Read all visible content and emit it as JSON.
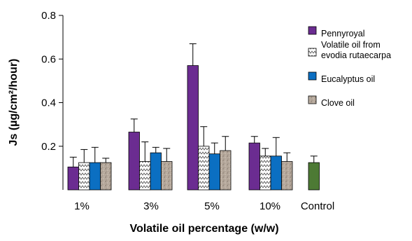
{
  "chart_data": {
    "type": "bar",
    "title": "",
    "xlabel": "Volatile oil percentage (w/w)",
    "ylabel": "Js (µg/cm²/hour)",
    "ylim": [
      0,
      0.8
    ],
    "yticks": [
      "0.2",
      "0.4",
      "0.6",
      "0.8"
    ],
    "categories": [
      "1%",
      "3%",
      "5%",
      "10%",
      "Control"
    ],
    "series": [
      {
        "name": "Pennyroyal",
        "color": "#6b2c91",
        "pattern": "solid",
        "values": [
          0.105,
          0.265,
          0.57,
          0.215,
          null
        ],
        "errors": [
          0.045,
          0.06,
          0.1,
          0.03,
          null
        ]
      },
      {
        "name": "Volatile oil from evodia rutaecarpa",
        "color": "#ffffff",
        "pattern": "zigzag",
        "values": [
          0.125,
          0.13,
          0.2,
          0.155,
          null
        ],
        "errors": [
          0.06,
          0.09,
          0.09,
          0.035,
          null
        ]
      },
      {
        "name": "Eucalyptus oil",
        "color": "#0b6fc2",
        "pattern": "solid",
        "values": [
          0.125,
          0.17,
          0.165,
          0.155,
          null
        ],
        "errors": [
          0.07,
          0.025,
          0.05,
          0.085,
          null
        ]
      },
      {
        "name": "Clove oil",
        "color": "#b5a89b",
        "pattern": "speckle",
        "values": [
          0.125,
          0.13,
          0.18,
          0.13,
          null
        ],
        "errors": [
          0.02,
          0.06,
          0.065,
          0.04,
          null
        ]
      }
    ],
    "control": {
      "value": 0.125,
      "error": 0.03,
      "color": "#4d7a34"
    },
    "legend": {
      "position": "top-right",
      "entries": [
        {
          "lines": [
            "Pennyroyal"
          ]
        },
        {
          "lines": [
            "Volatile oil from",
            "evodia rutaecarpa"
          ]
        },
        {
          "lines": [
            "Eucalyptus oil"
          ]
        },
        {
          "lines": [
            "Clove oil"
          ]
        }
      ]
    },
    "grid": false
  }
}
